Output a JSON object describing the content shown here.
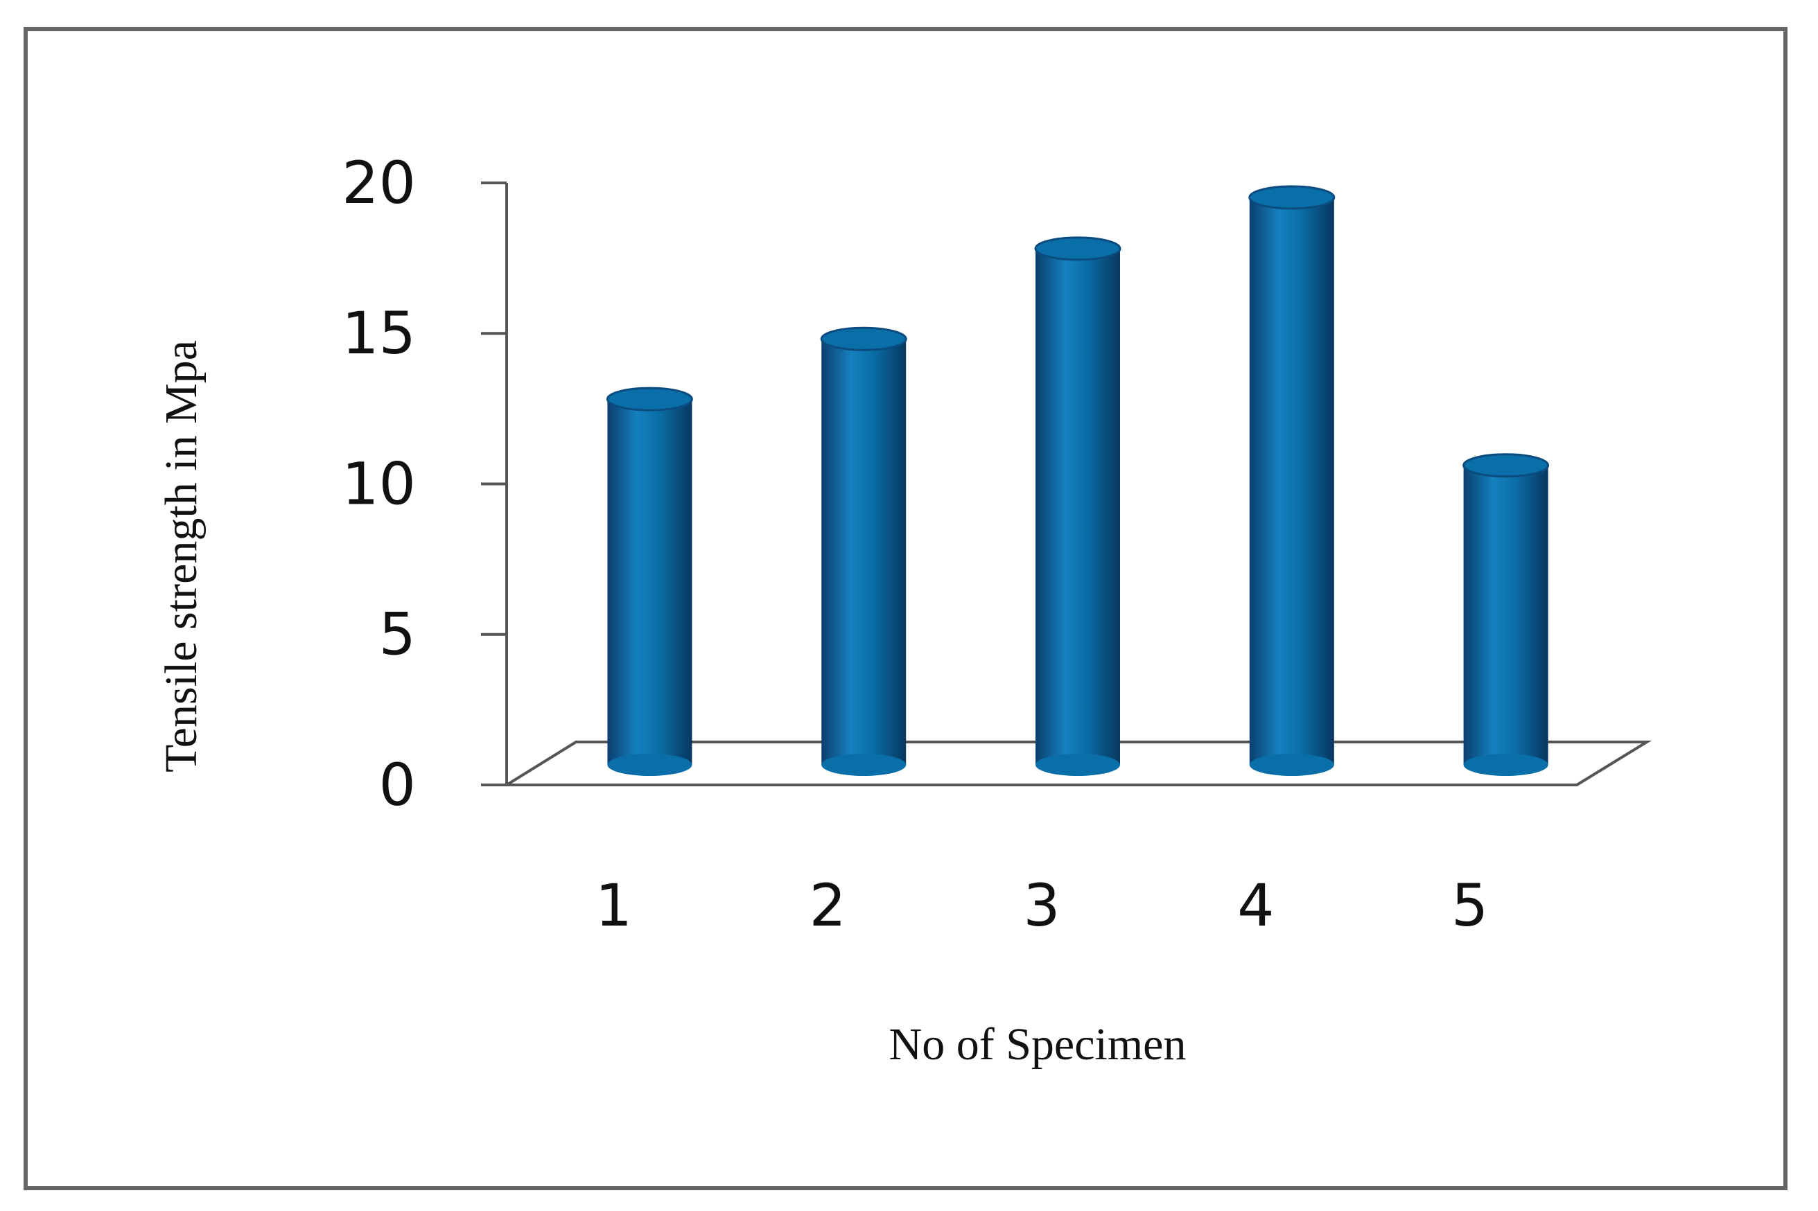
{
  "chart_data": {
    "type": "bar",
    "x_label": "No of Specimen",
    "y_label": "Tensile strength in Mpa",
    "categories": [
      "1",
      "2",
      "3",
      "4",
      "5"
    ],
    "values": [
      13,
      15,
      18,
      19.7,
      10.8
    ],
    "color": "#0a6fa8",
    "ylim": [
      0,
      20
    ],
    "yticks": [
      0,
      5,
      10,
      15,
      20
    ],
    "grid": false
  }
}
